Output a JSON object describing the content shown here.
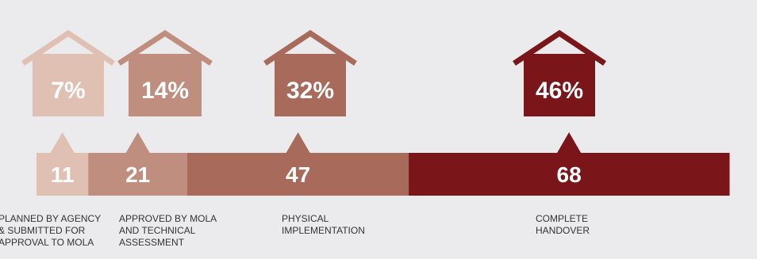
{
  "chart_data": {
    "type": "bar",
    "orientation": "horizontal-stacked",
    "categories": [
      "PLANNED BY AGENCY\n& SUBMITTED FOR\nAPPROVAL TO MOLA",
      "APPROVED BY MOLA\nAND TECHNICAL\nASSESSMENT",
      "PHYSICAL\nIMPLEMENTATION",
      "COMPLETE\nHANDOVER"
    ],
    "values": [
      11,
      21,
      47,
      68
    ],
    "value_labels": [
      "11",
      "21",
      "47",
      "68"
    ],
    "percentages": [
      "7%",
      "14%",
      "32%",
      "46%"
    ],
    "colors": [
      "#dfc0b3",
      "#c08e7f",
      "#a86a5b",
      "#7a1519"
    ]
  }
}
